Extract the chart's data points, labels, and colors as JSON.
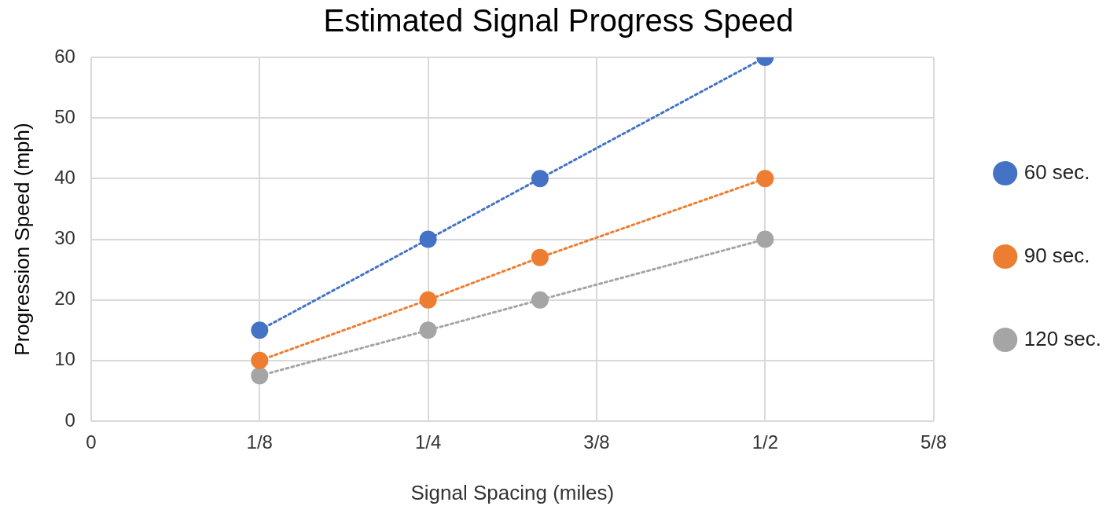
{
  "chart_data": {
    "type": "line",
    "title": "Estimated Signal Progress Speed",
    "xlabel": "Signal Spacing (miles)",
    "ylabel": "Progression Speed (mph)",
    "x": [
      0.125,
      0.25,
      0.333,
      0.5
    ],
    "series": [
      {
        "name": "60 sec.",
        "color": "#4472c4",
        "values": [
          15,
          30,
          40,
          60
        ]
      },
      {
        "name": "90 sec.",
        "color": "#ed7d31",
        "values": [
          10,
          20,
          27,
          40
        ]
      },
      {
        "name": "120 sec.",
        "color": "#a5a5a5",
        "values": [
          7.5,
          15,
          20,
          30
        ]
      }
    ],
    "xlim": [
      0,
      0.625
    ],
    "xticks": [
      0,
      {
        "value": 0.125,
        "label": "1/8"
      },
      {
        "value": 0.25,
        "label": "1/4"
      },
      {
        "value": 0.375,
        "label": "3/8"
      },
      {
        "value": 0.5,
        "label": "1/2"
      },
      {
        "value": 0.625,
        "label": "5/8"
      }
    ],
    "ylim": [
      0,
      60
    ],
    "yticks": [
      0,
      10,
      20,
      30,
      40,
      50,
      60
    ],
    "grid": true,
    "legend": "right",
    "marker": "circle",
    "line_style": "dotted"
  }
}
